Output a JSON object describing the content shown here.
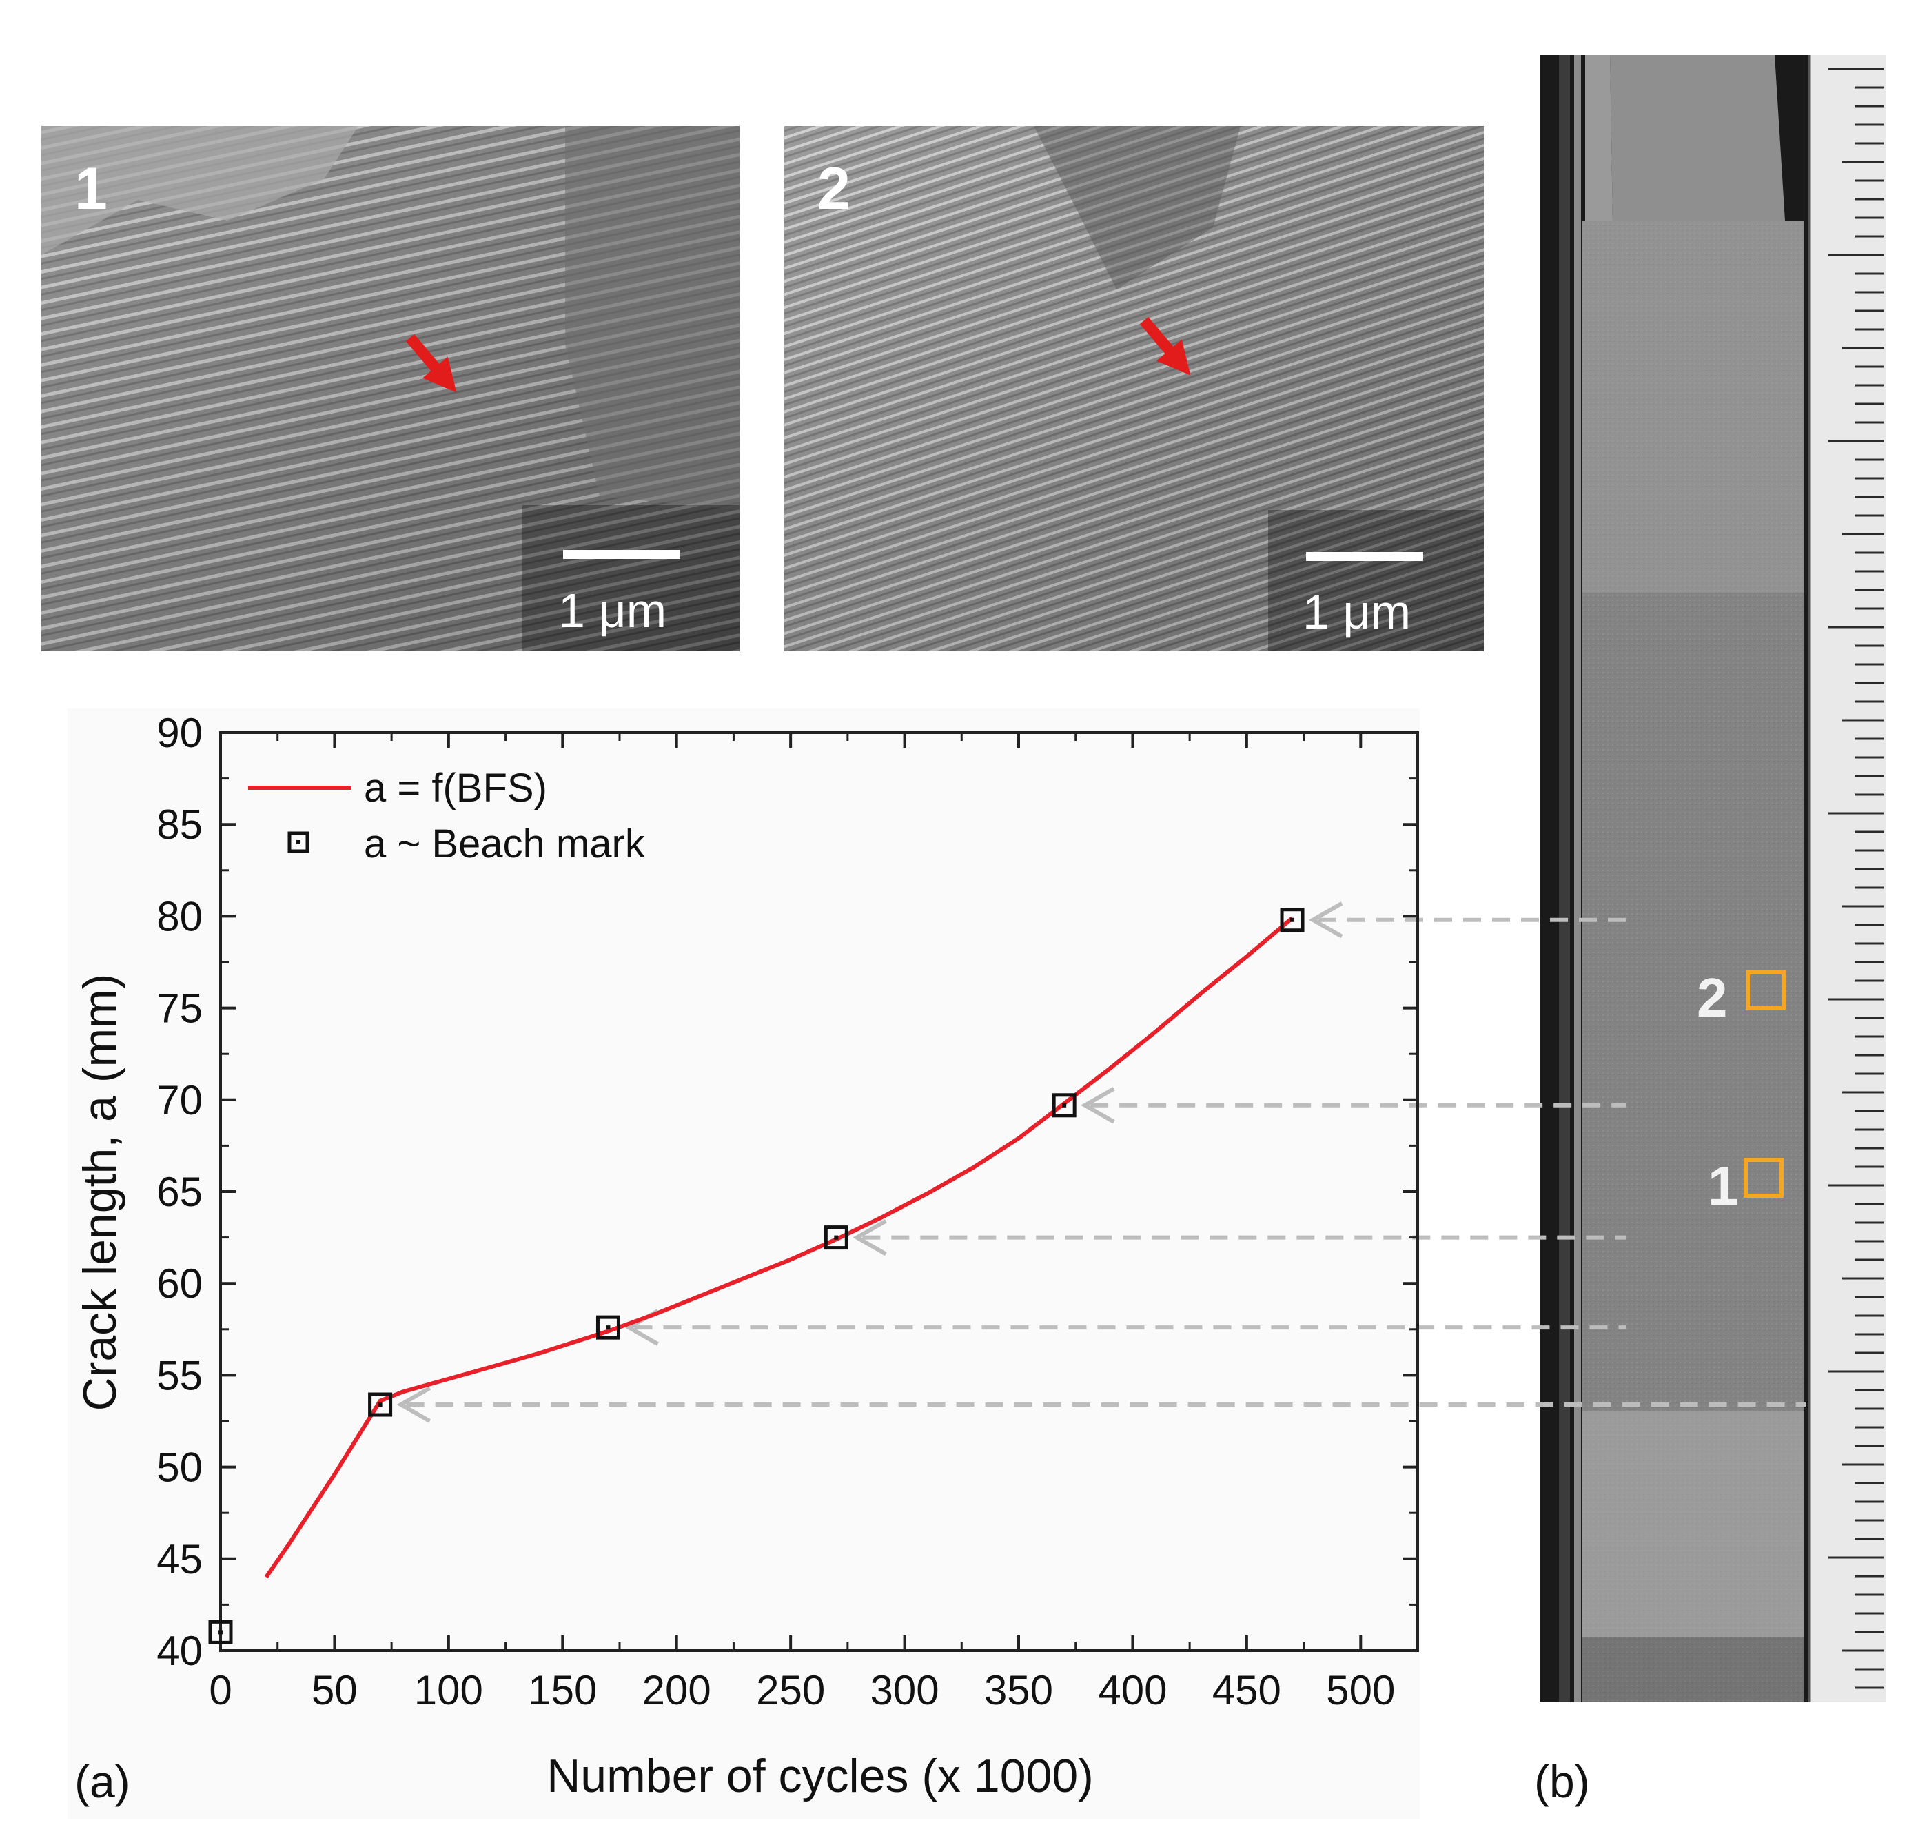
{
  "micrographs": [
    {
      "label": "1",
      "scale_bar": "1 μm"
    },
    {
      "label": "2",
      "scale_bar": "1 μm"
    }
  ],
  "panel_labels": {
    "a": "(a)",
    "b": "(b)"
  },
  "specimen_regions": [
    "2",
    "1"
  ],
  "colors": {
    "fit_line": "#e8202a",
    "marker": "#111111",
    "arrow": "#bdbdbd",
    "roi_box": "#f5a623",
    "sem_arrow": "#e21b1b"
  },
  "chart_data": {
    "type": "line",
    "xlabel": "Number of cycles (x 1000)",
    "ylabel": "Crack length, a (mm)",
    "xlim": [
      0,
      525
    ],
    "ylim": [
      40,
      90
    ],
    "xticks": [
      0,
      50,
      100,
      150,
      200,
      250,
      300,
      350,
      400,
      450,
      500
    ],
    "yticks": [
      40,
      45,
      50,
      55,
      60,
      65,
      70,
      75,
      80,
      85,
      90
    ],
    "legend_position": "top-left",
    "grid": false,
    "series": [
      {
        "name": "a = f(BFS)",
        "style": "line",
        "points": [
          [
            20,
            44.0
          ],
          [
            30,
            45.8
          ],
          [
            40,
            47.7
          ],
          [
            50,
            49.6
          ],
          [
            60,
            51.6
          ],
          [
            70,
            53.6
          ],
          [
            80,
            54.1
          ],
          [
            100,
            54.8
          ],
          [
            120,
            55.5
          ],
          [
            140,
            56.2
          ],
          [
            170,
            57.4
          ],
          [
            190,
            58.3
          ],
          [
            210,
            59.3
          ],
          [
            230,
            60.3
          ],
          [
            250,
            61.3
          ],
          [
            270,
            62.4
          ],
          [
            290,
            63.6
          ],
          [
            310,
            64.9
          ],
          [
            330,
            66.3
          ],
          [
            350,
            67.9
          ],
          [
            370,
            69.8
          ],
          [
            390,
            71.7
          ],
          [
            410,
            73.7
          ],
          [
            430,
            75.8
          ],
          [
            450,
            77.8
          ],
          [
            470,
            79.9
          ]
        ]
      },
      {
        "name": "a ~ Beach mark",
        "style": "marker",
        "points": [
          [
            0,
            41.0
          ],
          [
            70,
            53.4
          ],
          [
            170,
            57.6
          ],
          [
            270,
            62.5
          ],
          [
            370,
            69.7
          ],
          [
            470,
            79.8
          ]
        ]
      }
    ]
  }
}
